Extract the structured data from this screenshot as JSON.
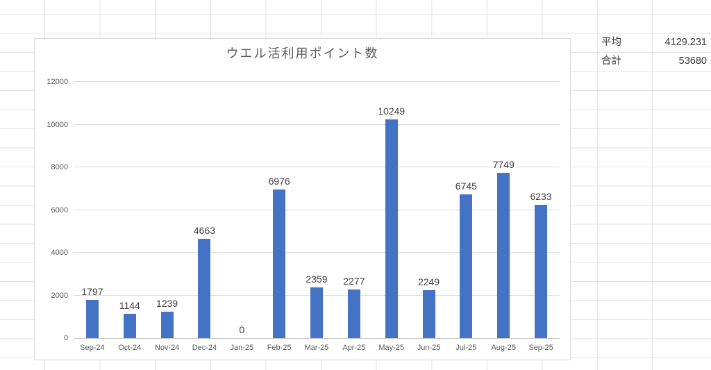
{
  "sheet": {
    "stats": [
      {
        "label": "平均",
        "value": "4129.231"
      },
      {
        "label": "合計",
        "value": "53680"
      }
    ]
  },
  "chart_data": {
    "type": "bar",
    "title": "ウエル活利用ポイント数",
    "categories": [
      "Sep-24",
      "Oct-24",
      "Nov-24",
      "Dec-24",
      "Jan-25",
      "Feb-25",
      "Mar-25",
      "Apr-25",
      "May-25",
      "Jun-25",
      "Jul-25",
      "Aug-25",
      "Sep-25"
    ],
    "values": [
      1797,
      1144,
      1239,
      4663,
      0,
      6976,
      2359,
      2277,
      10249,
      2249,
      6745,
      7749,
      6233
    ],
    "xlabel": "",
    "ylabel": "",
    "ylim": [
      0,
      12000
    ],
    "yticks": [
      0,
      2000,
      4000,
      6000,
      8000,
      10000,
      12000
    ],
    "grid": true,
    "legend": "none",
    "data_labels": true,
    "bar_color": "#4472C4",
    "colors": {
      "title": "#5b5b5b",
      "axis_text": "#595959",
      "data_label": "#404040",
      "gridline": "#dcdcdc"
    }
  }
}
